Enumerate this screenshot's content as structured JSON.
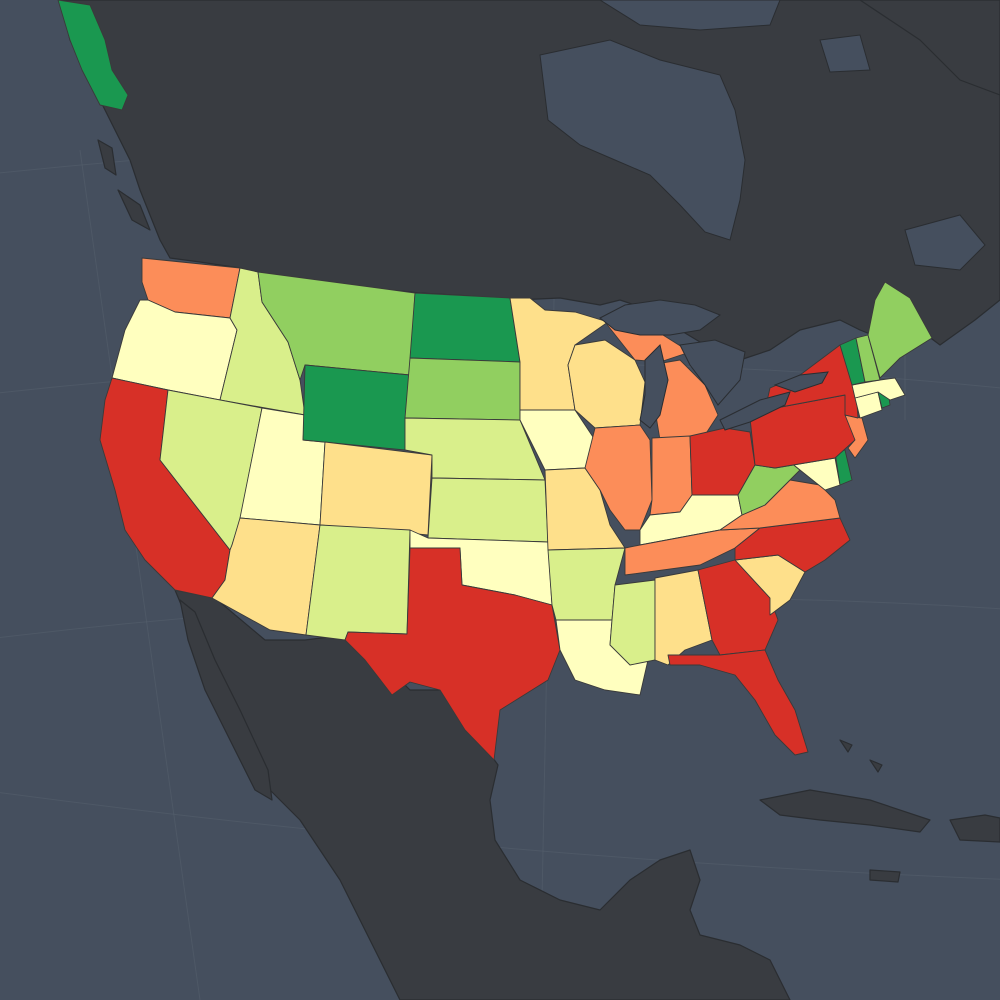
{
  "map": {
    "ocean_color": "#454f5e",
    "land_color": "#393c41",
    "border_color": "#2a2d31",
    "state_border_color": "#3a3a3a"
  },
  "palette": {
    "dark_green": "#1a9850",
    "green": "#91cf60",
    "light_green": "#d9ef8b",
    "pale_yellow": "#ffffbf",
    "light_orange": "#fee08b",
    "orange": "#fc8d59",
    "red": "#d73027"
  },
  "regions": [
    {
      "id": "WA",
      "cls": "orange"
    },
    {
      "id": "OR",
      "cls": "pale_yellow"
    },
    {
      "id": "CA",
      "cls": "red"
    },
    {
      "id": "ID",
      "cls": "light_green"
    },
    {
      "id": "NV",
      "cls": "light_green"
    },
    {
      "id": "UT",
      "cls": "pale_yellow"
    },
    {
      "id": "AZ",
      "cls": "light_orange"
    },
    {
      "id": "MT",
      "cls": "green"
    },
    {
      "id": "WY",
      "cls": "dark_green"
    },
    {
      "id": "CO",
      "cls": "light_orange"
    },
    {
      "id": "NM",
      "cls": "light_green"
    },
    {
      "id": "ND",
      "cls": "dark_green"
    },
    {
      "id": "SD",
      "cls": "green"
    },
    {
      "id": "NE",
      "cls": "light_green"
    },
    {
      "id": "KS",
      "cls": "light_green"
    },
    {
      "id": "OK",
      "cls": "pale_yellow"
    },
    {
      "id": "TX",
      "cls": "red"
    },
    {
      "id": "MN",
      "cls": "light_orange"
    },
    {
      "id": "IA",
      "cls": "pale_yellow"
    },
    {
      "id": "MO",
      "cls": "light_orange"
    },
    {
      "id": "AR",
      "cls": "light_green"
    },
    {
      "id": "LA",
      "cls": "pale_yellow"
    },
    {
      "id": "WI",
      "cls": "light_orange"
    },
    {
      "id": "IL",
      "cls": "orange"
    },
    {
      "id": "MS",
      "cls": "light_green"
    },
    {
      "id": "MI",
      "cls": "orange"
    },
    {
      "id": "IN",
      "cls": "orange"
    },
    {
      "id": "KY",
      "cls": "pale_yellow"
    },
    {
      "id": "TN",
      "cls": "orange"
    },
    {
      "id": "AL",
      "cls": "light_orange"
    },
    {
      "id": "OH",
      "cls": "red"
    },
    {
      "id": "WV",
      "cls": "green"
    },
    {
      "id": "VA",
      "cls": "orange"
    },
    {
      "id": "NC",
      "cls": "red"
    },
    {
      "id": "SC",
      "cls": "light_orange"
    },
    {
      "id": "GA",
      "cls": "red"
    },
    {
      "id": "FL",
      "cls": "red"
    },
    {
      "id": "PA",
      "cls": "red"
    },
    {
      "id": "NY",
      "cls": "red"
    },
    {
      "id": "NJ",
      "cls": "orange"
    },
    {
      "id": "DE",
      "cls": "dark_green"
    },
    {
      "id": "MD",
      "cls": "pale_yellow"
    },
    {
      "id": "VT",
      "cls": "dark_green"
    },
    {
      "id": "NH",
      "cls": "green"
    },
    {
      "id": "ME",
      "cls": "green"
    },
    {
      "id": "MA",
      "cls": "pale_yellow"
    },
    {
      "id": "CT",
      "cls": "pale_yellow"
    },
    {
      "id": "RI",
      "cls": "dark_green"
    },
    {
      "id": "AK",
      "cls": "dark_green"
    }
  ]
}
